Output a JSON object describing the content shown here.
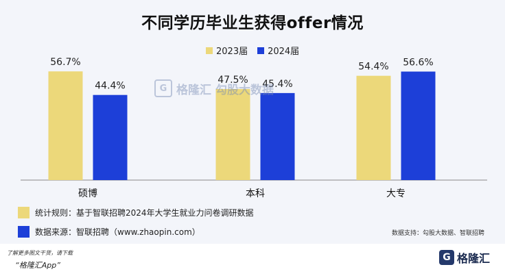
{
  "chart_data": {
    "type": "bar",
    "title": "不同学历毕业生获得offer情况",
    "categories": [
      "硕博",
      "本科",
      "大专"
    ],
    "series": [
      {
        "name": "2023届",
        "values": [
          56.7,
          47.5,
          54.4
        ],
        "labels": [
          "56.7%",
          "47.5%",
          "54.4%"
        ],
        "color": "#ecd87a"
      },
      {
        "name": "2024届",
        "values": [
          44.4,
          45.4,
          56.6
        ],
        "labels": [
          "44.4%",
          "45.4%",
          "56.6%"
        ],
        "color": "#1d3fd8"
      }
    ],
    "ylim": [
      0,
      60
    ],
    "grid": false,
    "legend": "top-center"
  },
  "notes": {
    "rule": "统计规则：基于智联招聘2024年大学生就业力问卷调研数据",
    "source": "数据来源：智联招聘（www.zhaopin.com）"
  },
  "data_support": "数据支持：勾股大数据、智联招聘",
  "watermark": {
    "brand": "格隆汇",
    "sub": "勾股大数据",
    "icon": "g-logo-icon"
  },
  "footer": {
    "download_hint": "了解更多图文干货，请下载",
    "app_name": "“格隆汇App”",
    "logo_text": "格隆汇",
    "logo_icon": "g-logo-icon"
  }
}
